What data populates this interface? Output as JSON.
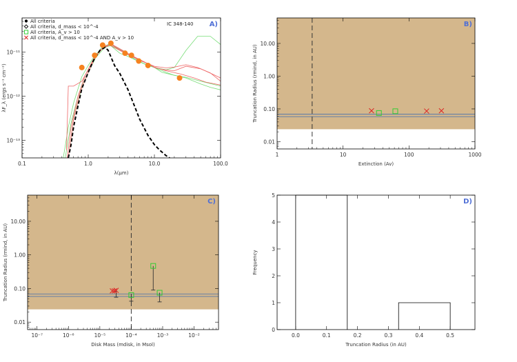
{
  "chart_data": [
    {
      "type": "line",
      "panel_label": "A)",
      "annotation": "IC 348-140",
      "xlabel": "λ(μm)",
      "ylabel": "λF_λ (ergs s⁻¹ cm⁻²)",
      "xscale": "log",
      "yscale": "log",
      "xlim": [
        0.1,
        100
      ],
      "ylim": [
        4e-14,
        6e-11
      ],
      "xticks": [
        {
          "v": 0.1,
          "t": "0.1"
        },
        {
          "v": 1,
          "t": "1.0"
        },
        {
          "v": 10,
          "t": "10.0"
        },
        {
          "v": 100,
          "t": "100.0"
        }
      ],
      "yticks": [
        {
          "v": 1e-13,
          "t": "10⁻¹³"
        },
        {
          "v": 1e-12,
          "t": "10⁻¹²"
        },
        {
          "v": 1e-11,
          "t": "10⁻¹¹"
        }
      ],
      "legend": [
        {
          "label": "All criteria",
          "marker": "dot",
          "color": "#000000"
        },
        {
          "label": "All criteria, d_mass < 10^-4",
          "marker": "diamond",
          "color": "#000000"
        },
        {
          "label": "All criteria, A_v > 10",
          "marker": "square",
          "color": "#33cc33"
        },
        {
          "label": "All criteria, d_mass < 10^-4 AND A_v > 10",
          "marker": "x",
          "color": "#dd2222"
        }
      ],
      "observed_points": [
        {
          "x": 0.8,
          "y": 4.5e-12
        },
        {
          "x": 1.25,
          "y": 8.5e-12
        },
        {
          "x": 1.65,
          "y": 1.45e-11
        },
        {
          "x": 2.2,
          "y": 1.6e-11
        },
        {
          "x": 3.6,
          "y": 9.5e-12
        },
        {
          "x": 4.5,
          "y": 8.5e-12
        },
        {
          "x": 5.8,
          "y": 6.3e-12
        },
        {
          "x": 8.0,
          "y": 5e-12
        },
        {
          "x": 24,
          "y": 2.6e-12
        }
      ],
      "series": [
        {
          "color": "#000000",
          "dash": "5,3",
          "width": 2,
          "x": [
            0.5,
            0.55,
            0.6,
            0.7,
            0.8,
            1.0,
            1.2,
            1.5,
            1.8,
            2.0,
            2.5,
            3.0,
            4.0,
            5.0,
            6.0,
            8.0,
            10,
            12,
            15,
            17
          ],
          "y": [
            4e-14,
            8e-14,
            2e-13,
            6e-13,
            1.5e-12,
            3.5e-12,
            6.5e-12,
            1.1e-11,
            1.3e-11,
            1.1e-11,
            5e-12,
            3.3e-12,
            1.4e-12,
            6e-13,
            3e-13,
            1.3e-13,
            8e-14,
            6e-14,
            4.5e-14,
            4e-14
          ]
        },
        {
          "color": "#77dd77",
          "dash": "",
          "width": 0.8,
          "x": [
            0.42,
            0.5,
            0.6,
            0.8,
            1.0,
            1.3,
            1.7,
            2.2,
            3.0,
            4.0,
            6.0,
            8.0,
            10,
            15,
            20,
            30,
            45,
            70,
            100
          ],
          "y": [
            4e-14,
            2e-13,
            7e-13,
            2.8e-12,
            5e-12,
            9e-12,
            1.3e-11,
            1.4e-11,
            9.5e-12,
            8e-12,
            6e-12,
            5e-12,
            4.5e-12,
            4e-12,
            4.5e-12,
            1.1e-11,
            2.3e-11,
            2.3e-11,
            1.5e-11
          ]
        },
        {
          "color": "#77dd77",
          "dash": "",
          "width": 0.8,
          "x": [
            0.45,
            0.55,
            0.7,
            0.9,
            1.2,
            1.6,
            2.0,
            2.5,
            3.5,
            5.0,
            7.0,
            10,
            15,
            20,
            30,
            50,
            70,
            100
          ],
          "y": [
            4e-14,
            2.5e-13,
            1e-12,
            3e-12,
            7e-12,
            1.3e-11,
            1.5e-11,
            1.3e-11,
            1e-11,
            7e-12,
            5.5e-12,
            4.5e-12,
            3.5e-12,
            3e-12,
            2.6e-12,
            1.9e-12,
            1.6e-12,
            1.4e-12
          ]
        },
        {
          "color": "#77dd77",
          "dash": "",
          "width": 0.8,
          "x": [
            0.5,
            0.6,
            0.8,
            1.0,
            1.3,
            1.7,
            2.2,
            3.0,
            4.0,
            6.0,
            8.0,
            10,
            13,
            20,
            30,
            50,
            100
          ],
          "y": [
            4e-14,
            3e-13,
            1.6e-12,
            3.5e-12,
            7.5e-12,
            1.2e-11,
            1.5e-11,
            1.2e-11,
            9e-12,
            6.5e-12,
            5.5e-12,
            4.5e-12,
            3.5e-12,
            3e-12,
            2.7e-12,
            2.2e-12,
            1.7e-12
          ]
        },
        {
          "color": "#ee6666",
          "dash": "",
          "width": 0.8,
          "x": [
            0.48,
            0.55,
            0.7,
            0.9,
            1.2,
            1.6,
            2.1,
            3.0,
            4.5,
            6.0,
            8.0,
            10,
            14,
            20,
            30,
            50,
            75,
            100
          ],
          "y": [
            4e-14,
            2e-13,
            1e-12,
            3e-12,
            7e-12,
            1.2e-11,
            1.45e-11,
            1.1e-11,
            8e-12,
            6.5e-12,
            5.5e-12,
            4.5e-12,
            4e-12,
            3.8e-12,
            4.8e-12,
            4.2e-12,
            3.2e-12,
            2.6e-12
          ]
        },
        {
          "color": "#ee6666",
          "dash": "",
          "width": 0.8,
          "x": [
            0.5,
            0.6,
            0.75,
            1.0,
            1.3,
            1.7,
            2.2,
            3.0,
            4.0,
            6.0,
            8.0,
            10,
            15,
            20,
            30,
            45,
            70,
            100
          ],
          "y": [
            4e-14,
            3e-13,
            1.2e-12,
            3.5e-12,
            8e-12,
            1.3e-11,
            1.5e-11,
            1.15e-11,
            9e-12,
            6.8e-12,
            5.5e-12,
            4.8e-12,
            4.4e-12,
            4.6e-12,
            5.2e-12,
            4.5e-12,
            3.4e-12,
            2.2e-12
          ]
        },
        {
          "color": "#ee6666",
          "dash": "",
          "width": 0.8,
          "x": [
            0.47,
            0.5,
            0.6,
            0.8,
            1.0,
            1.3,
            1.8,
            2.3,
            3.0,
            4.5,
            7.0,
            10,
            15,
            25,
            40,
            60,
            100
          ],
          "y": [
            6e-14,
            1.7e-12,
            1.7e-12,
            2.2e-12,
            4e-12,
            8.5e-12,
            1.4e-11,
            1.5e-11,
            1.2e-11,
            8.5e-12,
            6e-12,
            4.6e-12,
            3.8e-12,
            3.2e-12,
            2.6e-12,
            2.1e-12,
            1.8e-12
          ]
        }
      ]
    },
    {
      "type": "scatter",
      "panel_label": "B)",
      "xlabel": "Extinction (Av)",
      "ylabel": "Truncation Radius (rmind, in AU)",
      "xscale": "log",
      "yscale": "log",
      "xlim": [
        1,
        1000
      ],
      "ylim": [
        0.006,
        60
      ],
      "xticks": [
        {
          "v": 1,
          "t": "1"
        },
        {
          "v": 10,
          "t": "10"
        },
        {
          "v": 100,
          "t": "100"
        },
        {
          "v": 1000,
          "t": "1000"
        }
      ],
      "yticks": [
        {
          "v": 0.01,
          "t": "0.01"
        },
        {
          "v": 0.1,
          "t": "0.10"
        },
        {
          "v": 1,
          "t": "1.00"
        },
        {
          "v": 10,
          "t": "10.00"
        }
      ],
      "shaded_region": {
        "ymin": 0.024,
        "ymax": 60,
        "color": "#d4b78c"
      },
      "hlines": [
        0.058,
        0.069
      ],
      "vline_dashed": 3.4,
      "points": [
        {
          "x": 27,
          "y": 0.088,
          "marker": "x",
          "color": "#dd2222"
        },
        {
          "x": 35,
          "y": 0.075,
          "marker": "square",
          "color": "#33cc33"
        },
        {
          "x": 62,
          "y": 0.085,
          "marker": "square",
          "color": "#33cc33"
        },
        {
          "x": 185,
          "y": 0.086,
          "marker": "x",
          "color": "#dd2222"
        },
        {
          "x": 310,
          "y": 0.088,
          "marker": "x",
          "color": "#dd2222"
        }
      ]
    },
    {
      "type": "scatter",
      "panel_label": "C)",
      "xlabel": "Disk Mass (mdisk, in Msol)",
      "ylabel": "Truncation Radius (rmind, in AU)",
      "xscale": "log",
      "yscale": "log",
      "xlim": [
        5e-08,
        0.06
      ],
      "ylim": [
        0.006,
        60
      ],
      "xticks": [
        {
          "v": 1e-07,
          "t": "10⁻⁷"
        },
        {
          "v": 1e-06,
          "t": "10⁻⁶"
        },
        {
          "v": 1e-05,
          "t": "10⁻⁵"
        },
        {
          "v": 0.0001,
          "t": "10⁻⁴"
        },
        {
          "v": 0.001,
          "t": "10⁻³"
        },
        {
          "v": 0.01,
          "t": "10⁻²"
        }
      ],
      "yticks": [
        {
          "v": 0.01,
          "t": "0.01"
        },
        {
          "v": 0.1,
          "t": "0.10"
        },
        {
          "v": 1,
          "t": "1.00"
        },
        {
          "v": 10,
          "t": "10.00"
        }
      ],
      "shaded_region": {
        "ymin": 0.024,
        "ymax": 60,
        "color": "#d4b78c"
      },
      "hlines": [
        0.058,
        0.069
      ],
      "vline_dashed": 0.0001,
      "points": [
        {
          "x": 2.5e-05,
          "y": 0.085,
          "marker": "x",
          "color": "#dd2222"
        },
        {
          "x": 2.9e-05,
          "y": 0.085,
          "marker": "x",
          "color": "#dd2222"
        },
        {
          "x": 3.3e-05,
          "y": 0.088,
          "marker": "x",
          "color": "#dd2222"
        },
        {
          "x": 0.0001,
          "y": 0.064,
          "marker": "square",
          "color": "#33cc33"
        },
        {
          "x": 0.0005,
          "y": 0.47,
          "marker": "square",
          "color": "#33cc33"
        },
        {
          "x": 0.0008,
          "y": 0.075,
          "marker": "square",
          "color": "#33cc33"
        }
      ],
      "errorbars": [
        {
          "x": 3.3e-05,
          "ylo": 0.055,
          "yhi": 0.088
        },
        {
          "x": 0.0001,
          "ylo": 0.042,
          "yhi": 0.064
        },
        {
          "x": 0.0005,
          "ylo": 0.09,
          "yhi": 0.47
        },
        {
          "x": 0.0008,
          "ylo": 0.04,
          "yhi": 0.075
        }
      ]
    },
    {
      "type": "bar",
      "panel_label": "D)",
      "xlabel": "Truncation Radius (in AU)",
      "ylabel": "Frequency",
      "xlim": [
        -0.06,
        0.58
      ],
      "ylim": [
        0,
        5
      ],
      "xticks": [
        {
          "v": 0.0,
          "t": "0.0"
        },
        {
          "v": 0.1,
          "t": "0.1"
        },
        {
          "v": 0.2,
          "t": "0.2"
        },
        {
          "v": 0.3,
          "t": "0.3"
        },
        {
          "v": 0.4,
          "t": "0.4"
        },
        {
          "v": 0.5,
          "t": "0.5"
        }
      ],
      "yticks": [
        {
          "v": 0,
          "t": "0"
        },
        {
          "v": 1,
          "t": "1"
        },
        {
          "v": 2,
          "t": "2"
        },
        {
          "v": 3,
          "t": "3"
        },
        {
          "v": 4,
          "t": "4"
        },
        {
          "v": 5,
          "t": "5"
        }
      ],
      "bins": [
        {
          "x0": 0.0,
          "x1": 0.167,
          "count": 5
        },
        {
          "x0": 0.167,
          "x1": 0.333,
          "count": 0
        },
        {
          "x0": 0.333,
          "x1": 0.5,
          "count": 1
        }
      ]
    }
  ]
}
